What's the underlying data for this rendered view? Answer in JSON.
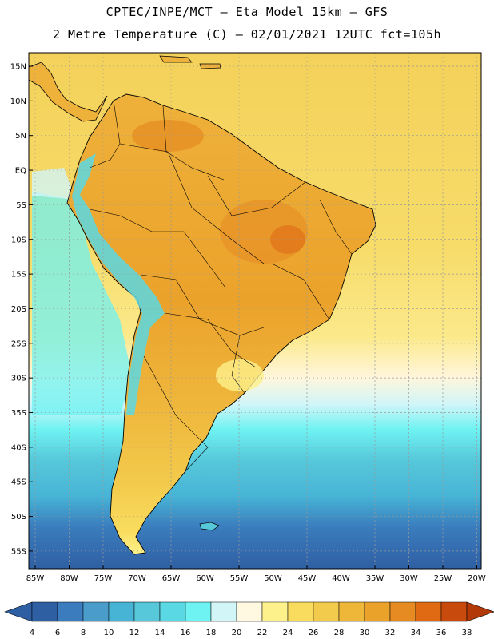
{
  "header": {
    "line1": "CPTEC/INPE/MCT –  Eta Model 15km – GFS",
    "line2": "2 Metre Temperature (C) – 02/01/2021 12UTC fct=105h"
  },
  "map": {
    "lat_labels": [
      "15N",
      "10N",
      "5N",
      "EQ",
      "5S",
      "10S",
      "15S",
      "20S",
      "25S",
      "30S",
      "35S",
      "40S",
      "45S",
      "50S",
      "55S"
    ],
    "lon_labels": [
      "85W",
      "80W",
      "75W",
      "70W",
      "65W",
      "60W",
      "55W",
      "50W",
      "45W",
      "40W",
      "35W",
      "30W",
      "25W",
      "20W"
    ]
  },
  "colorbar": {
    "ticks": [
      "4",
      "6",
      "8",
      "10",
      "12",
      "14",
      "16",
      "18",
      "20",
      "22",
      "24",
      "26",
      "28",
      "30",
      "32",
      "34",
      "36",
      "38"
    ],
    "colors": [
      "#2f5fa3",
      "#3a7cbd",
      "#4a9ccb",
      "#47b4d6",
      "#57c8da",
      "#5ad8e4",
      "#6ff2f2",
      "#d2f5f8",
      "#fff9e2",
      "#fdf18c",
      "#f9dc5e",
      "#f3cb4c",
      "#eeb73a",
      "#eba22b",
      "#e68a22",
      "#e06a14",
      "#c84a0c"
    ],
    "left_cap_color": "#2f5fa3",
    "right_cap_color": "#b33a08"
  }
}
